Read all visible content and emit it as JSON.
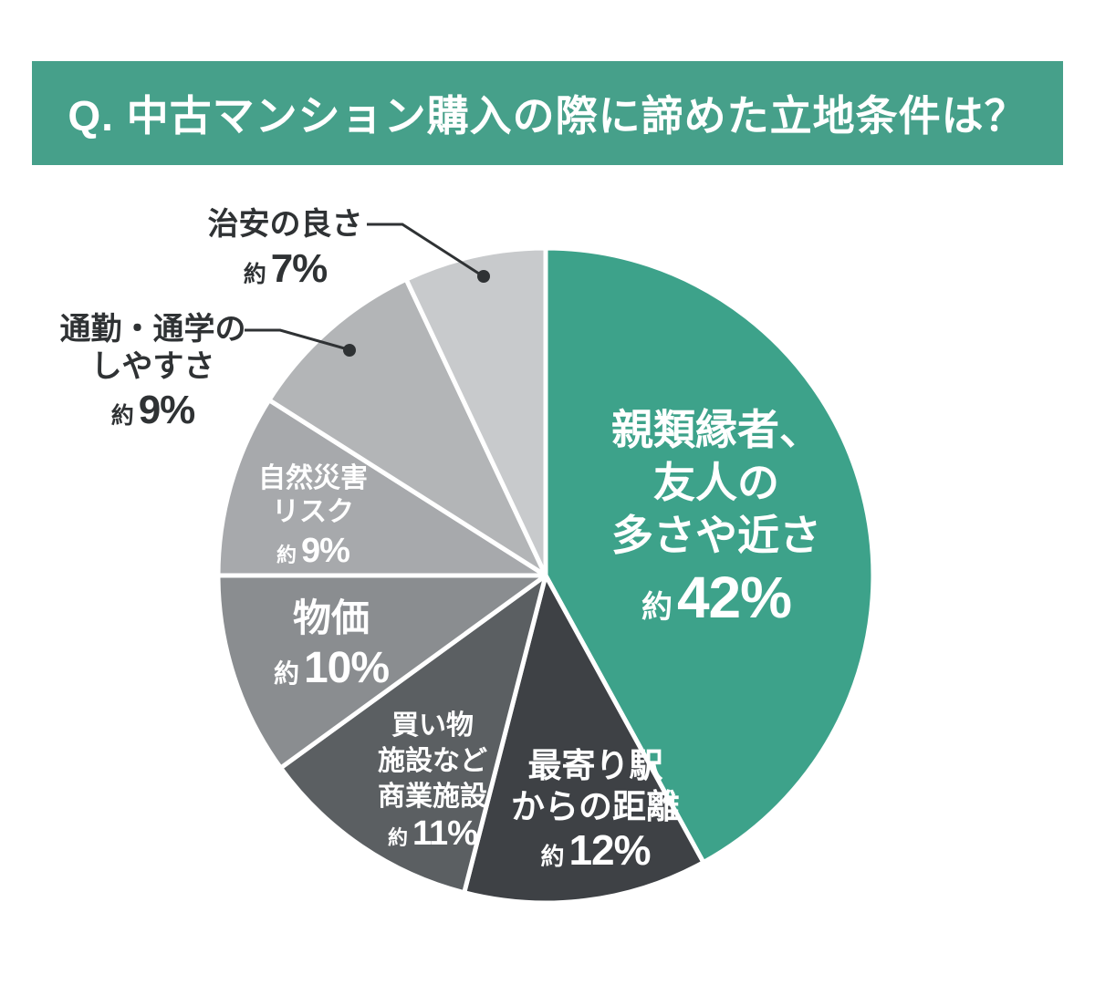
{
  "header": {
    "title": "Q. 中古マンション購入の際に諦めた立地条件は？",
    "background": "#46A08A",
    "text_color": "#FFFFFF"
  },
  "chart_data": {
    "type": "pie",
    "title": "中古マンション購入の際に諦めた立地条件",
    "unit": "%",
    "approx_prefix": "約",
    "start_angle_deg": 0,
    "direction": "clockwise",
    "legend_position": "none",
    "categories": [
      "親類縁者、友人の多さや近さ",
      "最寄り駅からの距離",
      "買い物施設など商業施設",
      "物価",
      "自然災害リスク",
      "通勤・通学のしやすさ",
      "治安の良さ"
    ],
    "values": [
      42,
      12,
      11,
      10,
      9,
      9,
      7
    ],
    "colors": [
      "#3DA28A",
      "#3E4145",
      "#5B5F62",
      "#8A8D90",
      "#A7A9AC",
      "#B3B5B7",
      "#C8CACC"
    ],
    "label_placement": [
      "inside",
      "inside",
      "inside",
      "inside",
      "inside",
      "callout",
      "callout"
    ],
    "callout_color": "#2F3234"
  },
  "slice_labels": {
    "relatives": {
      "lines": [
        "親類縁者、",
        "友人の",
        "多さや近さ"
      ],
      "approx": "約",
      "pct": "42%"
    },
    "station": {
      "lines": [
        "最寄り駅",
        "からの距離"
      ],
      "approx": "約",
      "pct": "12%"
    },
    "shopping": {
      "lines": [
        "買い物",
        "施設など",
        "商業施設"
      ],
      "approx": "約",
      "pct": "11%"
    },
    "price": {
      "lines": [
        "物価"
      ],
      "approx": "約",
      "pct": "10%"
    },
    "disaster": {
      "lines": [
        "自然災害",
        "リスク"
      ],
      "approx": "約",
      "pct": "9%"
    },
    "commute": {
      "lines": [
        "通勤・通学の",
        "しやすさ"
      ],
      "approx": "約",
      "pct": "9%"
    },
    "security": {
      "lines": [
        "治安の良さ"
      ],
      "approx": "約",
      "pct": "7%"
    }
  }
}
